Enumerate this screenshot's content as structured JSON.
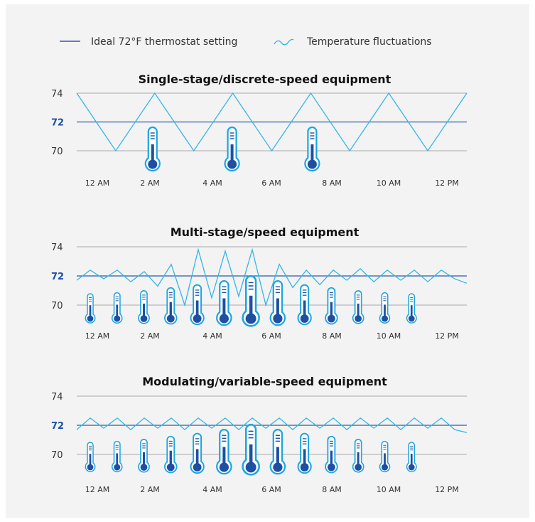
{
  "legend": {
    "ideal_label": "Ideal 72°F thermostat setting",
    "fluct_label": "Temperature fluctuations"
  },
  "colors": {
    "ideal": "#2c5aa8",
    "fluct": "#33b6e6",
    "icon": "#1f4fa3",
    "panel": "#f3f3f4"
  },
  "icon": "thermometer-icon",
  "chart_data": [
    {
      "type": "line",
      "title": "Single-stage/discrete-speed equipment",
      "x_ticks": [
        "12 AM",
        "2 AM",
        "4 AM",
        "6 AM",
        "8 AM",
        "10 AM",
        "12 PM"
      ],
      "y_ticks": [
        70,
        72,
        74
      ],
      "ylim": [
        70,
        74
      ],
      "ideal": 72,
      "series": [
        {
          "x": [
            0,
            1.3,
            2.6,
            3.9,
            5.2,
            6.5,
            7.8,
            9.1,
            10.4,
            11.7,
            13
          ],
          "y": [
            74,
            70,
            74,
            70,
            74,
            70,
            74,
            70,
            74,
            70,
            74
          ]
        }
      ],
      "thermometers": [
        {
          "x": 2.6,
          "level": 1.0
        },
        {
          "x": 5.2,
          "level": 1.0
        },
        {
          "x": 7.8,
          "level": 1.0
        }
      ]
    },
    {
      "type": "line",
      "title": "Multi-stage/speed equipment",
      "x_ticks": [
        "12 AM",
        "2 AM",
        "4 AM",
        "6 AM",
        "8 AM",
        "10 AM",
        "12 PM"
      ],
      "y_ticks": [
        70,
        72,
        74
      ],
      "ylim": [
        70,
        74
      ],
      "ideal": 72,
      "series": [
        {
          "x": [
            0,
            0.45,
            0.9,
            1.35,
            1.8,
            2.25,
            2.7,
            3.15,
            3.6,
            4.05,
            4.5,
            4.95,
            5.4,
            5.85,
            6.3,
            6.75,
            7.2,
            7.65,
            8.1,
            8.55,
            9.0,
            9.45,
            9.9,
            10.35,
            10.8,
            11.25,
            11.7,
            12.15,
            12.6,
            13.0
          ],
          "y": [
            71.7,
            72.4,
            71.8,
            72.4,
            71.6,
            72.3,
            71.3,
            72.8,
            70.0,
            73.8,
            70.5,
            73.7,
            70.6,
            73.8,
            70.0,
            72.8,
            71.2,
            72.4,
            71.4,
            72.4,
            71.7,
            72.5,
            71.6,
            72.4,
            71.7,
            72.4,
            71.6,
            72.4,
            71.8,
            71.5
          ]
        }
      ],
      "thermometers": [
        {
          "x": 0,
          "level": 0.1
        },
        {
          "x": 0.93,
          "level": 0.15
        },
        {
          "x": 1.86,
          "level": 0.25
        },
        {
          "x": 2.79,
          "level": 0.4
        },
        {
          "x": 3.71,
          "level": 0.55
        },
        {
          "x": 4.64,
          "level": 0.75
        },
        {
          "x": 5.57,
          "level": 1.0
        },
        {
          "x": 6.5,
          "level": 0.75
        },
        {
          "x": 7.43,
          "level": 0.55
        },
        {
          "x": 8.36,
          "level": 0.4
        },
        {
          "x": 9.29,
          "level": 0.25
        },
        {
          "x": 10.21,
          "level": 0.15
        },
        {
          "x": 11.14,
          "level": 0.1
        }
      ]
    },
    {
      "type": "line",
      "title": "Modulating/variable-speed equipment",
      "x_ticks": [
        "12 AM",
        "2 AM",
        "4 AM",
        "6 AM",
        "8 AM",
        "10 AM",
        "12 PM"
      ],
      "y_ticks": [
        70,
        72,
        74
      ],
      "ylim": [
        70,
        74
      ],
      "ideal": 72,
      "series": [
        {
          "x": [
            0,
            0.45,
            0.9,
            1.35,
            1.8,
            2.25,
            2.7,
            3.15,
            3.6,
            4.05,
            4.5,
            4.95,
            5.4,
            5.85,
            6.3,
            6.75,
            7.2,
            7.65,
            8.1,
            8.55,
            9.0,
            9.45,
            9.9,
            10.35,
            10.8,
            11.25,
            11.7,
            12.15,
            12.6,
            13.0
          ],
          "y": [
            71.7,
            72.5,
            71.8,
            72.5,
            71.7,
            72.5,
            71.8,
            72.5,
            71.7,
            72.5,
            71.8,
            72.5,
            71.7,
            72.5,
            71.8,
            72.5,
            71.7,
            72.5,
            71.8,
            72.5,
            71.7,
            72.5,
            71.8,
            72.5,
            71.7,
            72.5,
            71.8,
            72.5,
            71.7,
            71.5
          ]
        }
      ],
      "thermometers": [
        {
          "x": 0,
          "level": 0.1
        },
        {
          "x": 0.93,
          "level": 0.15
        },
        {
          "x": 1.86,
          "level": 0.25
        },
        {
          "x": 2.79,
          "level": 0.4
        },
        {
          "x": 3.71,
          "level": 0.55
        },
        {
          "x": 4.64,
          "level": 0.75
        },
        {
          "x": 5.57,
          "level": 1.0
        },
        {
          "x": 6.5,
          "level": 0.75
        },
        {
          "x": 7.43,
          "level": 0.55
        },
        {
          "x": 8.36,
          "level": 0.4
        },
        {
          "x": 9.29,
          "level": 0.25
        },
        {
          "x": 10.21,
          "level": 0.15
        },
        {
          "x": 11.14,
          "level": 0.1
        }
      ]
    }
  ]
}
